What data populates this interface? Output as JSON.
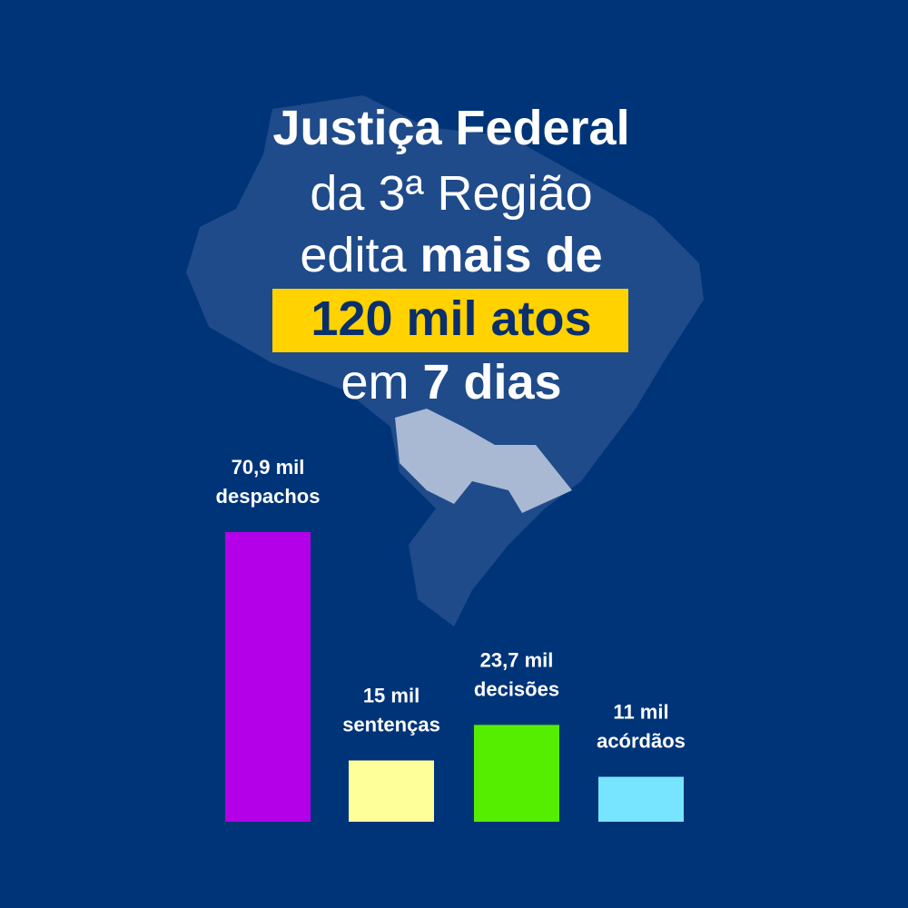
{
  "chart_data": {
    "type": "bar",
    "title": [
      [
        {
          "text": "Justiça Federal",
          "bold": true
        }
      ],
      [
        {
          "text": "da 3ª Região",
          "bold": false
        }
      ],
      [
        {
          "text": "edita ",
          "bold": false
        },
        {
          "text": "mais de",
          "bold": true
        }
      ],
      [
        {
          "text": "120 mil atos",
          "bold": true,
          "highlight": true
        }
      ],
      [
        {
          "text": "em ",
          "bold": false
        },
        {
          "text": "7 dias",
          "bold": true
        }
      ]
    ],
    "categories": [
      "despachos",
      "sentenças",
      "decisões",
      "acórdãos"
    ],
    "values": [
      70.9,
      15,
      23.7,
      11
    ],
    "value_labels": [
      "70,9 mil",
      "15 mil",
      "23,7 mil",
      "11 mil"
    ],
    "colors": [
      "#b300e8",
      "#ffff99",
      "#55ee00",
      "#77e5ff"
    ]
  }
}
